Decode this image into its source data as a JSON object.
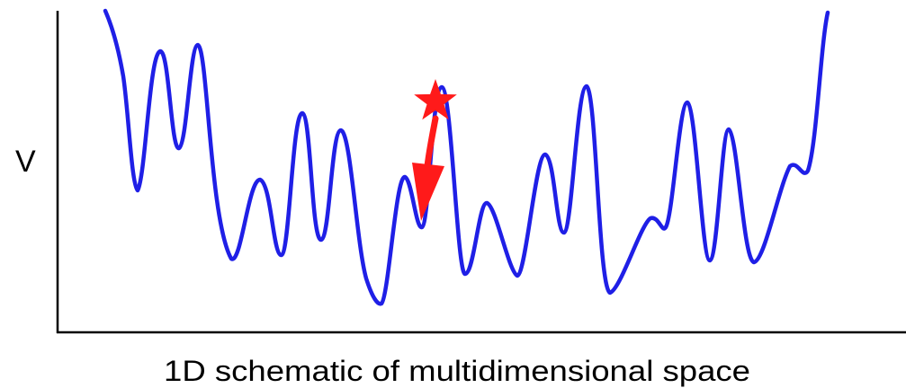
{
  "diagram": {
    "y_axis_label": "V",
    "x_axis_caption": "1D schematic of multidimensional space",
    "colors": {
      "axes": "#000000",
      "curve": "#1f1fe6",
      "marker": "#ff1a1a",
      "background": "#ffffff"
    },
    "marker_icon": "star-icon",
    "arrow_icon": "arrow-down-icon"
  }
}
